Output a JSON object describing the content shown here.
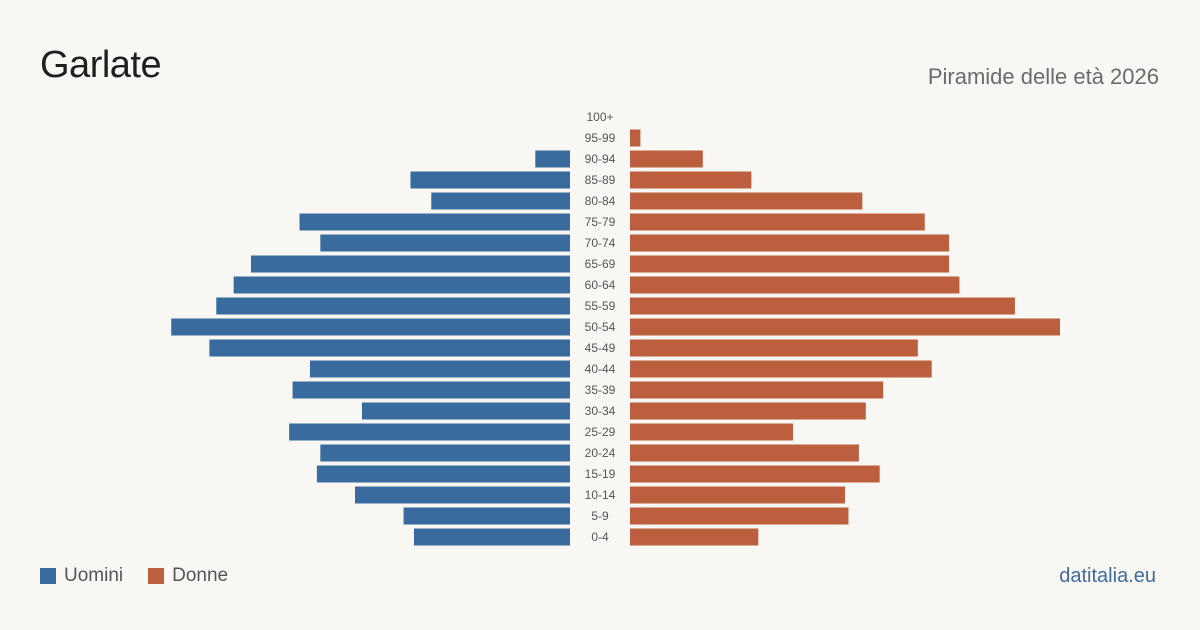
{
  "header": {
    "title": "Garlate",
    "subtitle": "Piramide delle età 2026"
  },
  "legend": {
    "men_label": "Uomini",
    "women_label": "Donne"
  },
  "colors": {
    "men": "#3a6b9e",
    "women": "#bc5f3f",
    "background": "#f9f7f3"
  },
  "footer": {
    "source": "datitalia.eu"
  },
  "chart_data": {
    "type": "bar",
    "orientation": "horizontal-pyramid",
    "categories": [
      "0-4",
      "5-9",
      "10-14",
      "15-19",
      "20-24",
      "25-29",
      "30-34",
      "35-39",
      "40-44",
      "45-49",
      "50-54",
      "55-59",
      "60-64",
      "65-69",
      "70-74",
      "75-79",
      "80-84",
      "85-89",
      "90-94",
      "95-99",
      "100+"
    ],
    "series": [
      {
        "name": "Uomini",
        "values": [
          45,
          48,
          62,
          73,
          72,
          81,
          60,
          80,
          75,
          104,
          115,
          102,
          97,
          92,
          72,
          78,
          40,
          46,
          10,
          0,
          0
        ]
      },
      {
        "name": "Donne",
        "values": [
          37,
          63,
          62,
          72,
          66,
          47,
          68,
          73,
          87,
          83,
          124,
          111,
          95,
          92,
          92,
          85,
          67,
          35,
          21,
          3,
          0
        ]
      }
    ],
    "xlim": [
      0,
      124
    ],
    "grid": false,
    "legend_position": "bottom-left"
  }
}
